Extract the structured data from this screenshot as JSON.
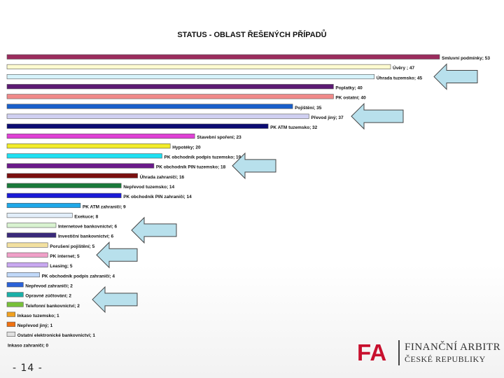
{
  "slide": {
    "page_number": "- 14 -"
  },
  "logo": {
    "mark": "FA",
    "line1": "FINANČNÍ ARBITR",
    "line2": "ČESKÉ REPUBLIKY"
  },
  "chart_data": {
    "type": "bar",
    "orientation": "horizontal",
    "title": "STATUS - OBLAST ŘEŠENÝCH PŘÍPADŮ",
    "xlabel": "",
    "ylabel": "",
    "xlim": [
      0,
      53
    ],
    "grid": false,
    "legend": "none",
    "categories": [
      {
        "label": "Smluvní podmínky; 53",
        "value": 53,
        "color": "#9b2c5e"
      },
      {
        "label": "Úvěry ; 47",
        "value": 47,
        "color": "#fffbd0"
      },
      {
        "label": "Úhrada tuzemsko; 45",
        "value": 45,
        "color": "#d6f3fb"
      },
      {
        "label": "Poplatky; 40",
        "value": 40,
        "color": "#5c1a73"
      },
      {
        "label": "PK ostatní; 40",
        "value": 40,
        "color": "#f08a8a"
      },
      {
        "label": "Pojištění; 35",
        "value": 35,
        "color": "#1a5fc9"
      },
      {
        "label": "Převod jiný; 37",
        "value": 37,
        "color": "#d0d0f2"
      },
      {
        "label": "PK ATM tuzemsko; 32",
        "value": 32,
        "color": "#0b0b73"
      },
      {
        "label": "Stavební spoření; 23",
        "value": 23,
        "color": "#e040d6"
      },
      {
        "label": "Hypotéky; 20",
        "value": 20,
        "color": "#f2ec2a"
      },
      {
        "label": "PK obchodník podpis tuzemsko; 19",
        "value": 19,
        "color": "#1fe0f2"
      },
      {
        "label": "PK obchodník PIN tuzemsko; 18",
        "value": 18,
        "color": "#6a1a8a"
      },
      {
        "label": "Úhrada zahraničí; 16",
        "value": 16,
        "color": "#7a1010"
      },
      {
        "label": "Nepřevod tuzemsko; 14",
        "value": 14,
        "color": "#1a7a3a"
      },
      {
        "label": "PK obchodník PIN zahraničí; 14",
        "value": 14,
        "color": "#1a1ad6"
      },
      {
        "label": "PK ATM zahraničí; 9",
        "value": 9,
        "color": "#1fa8e8"
      },
      {
        "label": "Exekuce; 8",
        "value": 8,
        "color": "#e2eefa"
      },
      {
        "label": "Internetové bankovnictví; 6",
        "value": 6,
        "color": "#d8f2d0"
      },
      {
        "label": "Investiční bankovnictví; 6",
        "value": 6,
        "color": "#3a2a7a"
      },
      {
        "label": "Porušení pojištění; 5",
        "value": 5,
        "color": "#f2e0a0"
      },
      {
        "label": "PK internet; 5",
        "value": 5,
        "color": "#f0a0c8"
      },
      {
        "label": "Leasing; 5",
        "value": 5,
        "color": "#c8a8f0"
      },
      {
        "label": "PK obchodník podpis zahraničí; 4",
        "value": 4,
        "color": "#c0d8f8"
      },
      {
        "label": "Nepřevod zahraničí; 2",
        "value": 2,
        "color": "#2a62d8"
      },
      {
        "label": "Opravné zúčtování; 2",
        "value": 2,
        "color": "#1ab0a8"
      },
      {
        "label": "Telefonní bankovnictví; 2",
        "value": 2,
        "color": "#78c03a"
      },
      {
        "label": "Inkaso tuzemsko; 1",
        "value": 1,
        "color": "#f0a020"
      },
      {
        "label": "Nepřevod jiný; 1",
        "value": 1,
        "color": "#f07010"
      },
      {
        "label": "Ostatní elektronické bankovnictví; 1",
        "value": 1,
        "color": "#e0e0e0"
      },
      {
        "label": "Inkaso zahraničí; 0",
        "value": 0,
        "color": "#e0e0e0"
      }
    ],
    "annotation_arrows": [
      {
        "points_to": "Úhrada tuzemsko; 45",
        "direction": "left"
      },
      {
        "points_to": "Převod jiný; 37",
        "direction": "left"
      },
      {
        "points_to": "PK obchodník PIN tuzemsko; 18",
        "direction": "left"
      },
      {
        "points_to": "Internetové bankovnictví; 6",
        "direction": "left"
      },
      {
        "points_to": "Investiční bankovnictví; 6",
        "direction": "left"
      },
      {
        "points_to": "PK internet; 5",
        "direction": "left"
      },
      {
        "points_to": "Opravné zúčtování; 2",
        "direction": "left"
      },
      {
        "points_to": "Telefonní bankovnictví; 2",
        "direction": "left"
      }
    ],
    "arrow_style": {
      "fill": "#b8e0ec",
      "stroke": "#444444"
    }
  }
}
